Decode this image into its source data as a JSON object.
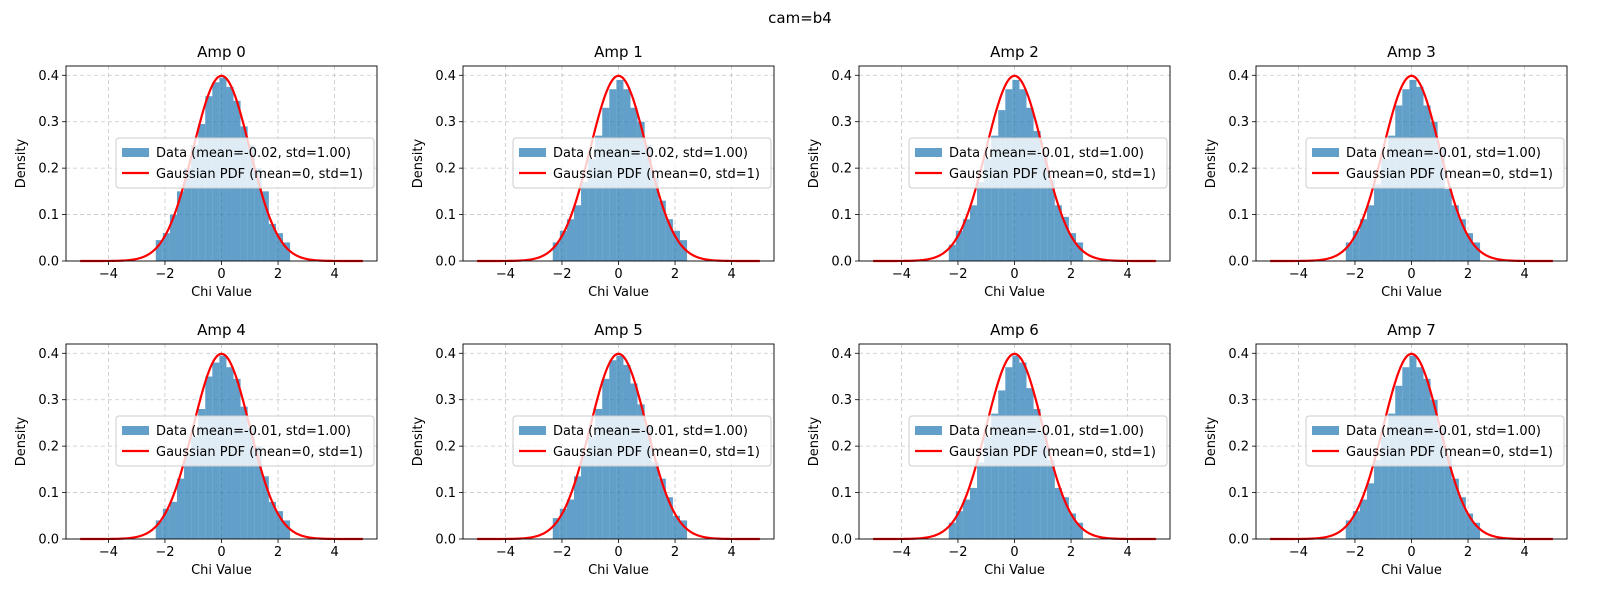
{
  "suptitle": "cam=b4",
  "colors": {
    "hist_fill": "#1f77b4",
    "hist_alpha": 0.7,
    "pdf_line": "#ff0000",
    "grid": "#b0b0b0"
  },
  "chart_data": [
    {
      "type": "bar",
      "title": "Amp 0",
      "xlabel": "Chi Value",
      "ylabel": "Density",
      "xlim": [
        -5.5,
        5.5
      ],
      "ylim": [
        0,
        0.42
      ],
      "xticks": [
        -4,
        -2,
        0,
        2,
        4
      ],
      "yticks": [
        0.0,
        0.1,
        0.2,
        0.3,
        0.4
      ],
      "grid": true,
      "legend_placement": "center",
      "legend": [
        "Data (mean=-0.02, std=1.00)",
        "Gaussian PDF (mean=0, std=1)"
      ],
      "series": [
        {
          "name": "Data (mean=-0.02, std=1.00)",
          "bin_centers": [
            -2.2,
            -1.95,
            -1.7,
            -1.45,
            -1.2,
            -0.95,
            -0.7,
            -0.45,
            -0.2,
            0.05,
            0.3,
            0.55,
            0.8,
            1.05,
            1.3,
            1.55,
            1.8,
            2.05,
            2.3
          ],
          "values": [
            0.045,
            0.06,
            0.1,
            0.15,
            0.2,
            0.25,
            0.295,
            0.355,
            0.385,
            0.395,
            0.375,
            0.345,
            0.29,
            0.25,
            0.2,
            0.15,
            0.08,
            0.06,
            0.04
          ]
        },
        {
          "name": "Gaussian PDF (mean=0, std=1)",
          "mean": 0,
          "std": 1,
          "x_range": [
            -5,
            5
          ]
        }
      ]
    },
    {
      "type": "bar",
      "title": "Amp 1",
      "xlabel": "Chi Value",
      "ylabel": "Density",
      "xlim": [
        -5.5,
        5.5
      ],
      "ylim": [
        0,
        0.42
      ],
      "xticks": [
        -4,
        -2,
        0,
        2,
        4
      ],
      "yticks": [
        0.0,
        0.1,
        0.2,
        0.3,
        0.4
      ],
      "grid": true,
      "legend_placement": "center",
      "legend": [
        "Data (mean=-0.02, std=1.00)",
        "Gaussian PDF (mean=0, std=1)"
      ],
      "series": [
        {
          "name": "Data (mean=-0.02, std=1.00)",
          "bin_centers": [
            -2.2,
            -1.95,
            -1.7,
            -1.45,
            -1.2,
            -0.95,
            -0.7,
            -0.45,
            -0.2,
            0.05,
            0.3,
            0.55,
            0.8,
            1.05,
            1.3,
            1.55,
            1.8,
            2.05,
            2.3
          ],
          "values": [
            0.04,
            0.065,
            0.09,
            0.12,
            0.17,
            0.22,
            0.27,
            0.33,
            0.37,
            0.39,
            0.37,
            0.33,
            0.3,
            0.25,
            0.18,
            0.13,
            0.09,
            0.065,
            0.045
          ]
        },
        {
          "name": "Gaussian PDF (mean=0, std=1)",
          "mean": 0,
          "std": 1,
          "x_range": [
            -5,
            5
          ]
        }
      ]
    },
    {
      "type": "bar",
      "title": "Amp 2",
      "xlabel": "Chi Value",
      "ylabel": "Density",
      "xlim": [
        -5.5,
        5.5
      ],
      "ylim": [
        0,
        0.42
      ],
      "xticks": [
        -4,
        -2,
        0,
        2,
        4
      ],
      "yticks": [
        0.0,
        0.1,
        0.2,
        0.3,
        0.4
      ],
      "grid": true,
      "legend_placement": "center",
      "legend": [
        "Data (mean=-0.01, std=1.00)",
        "Gaussian PDF (mean=0, std=1)"
      ],
      "series": [
        {
          "name": "Data (mean=-0.01, std=1.00)",
          "bin_centers": [
            -2.2,
            -1.95,
            -1.7,
            -1.45,
            -1.2,
            -0.95,
            -0.7,
            -0.45,
            -0.2,
            0.05,
            0.3,
            0.55,
            0.8,
            1.05,
            1.3,
            1.55,
            1.8,
            2.05,
            2.3
          ],
          "values": [
            0.035,
            0.065,
            0.09,
            0.12,
            0.17,
            0.22,
            0.27,
            0.325,
            0.37,
            0.39,
            0.37,
            0.33,
            0.28,
            0.23,
            0.175,
            0.12,
            0.095,
            0.06,
            0.04
          ]
        },
        {
          "name": "Gaussian PDF (mean=0, std=1)",
          "mean": 0,
          "std": 1,
          "x_range": [
            -5,
            5
          ]
        }
      ]
    },
    {
      "type": "bar",
      "title": "Amp 3",
      "xlabel": "Chi Value",
      "ylabel": "Density",
      "xlim": [
        -5.5,
        5.5
      ],
      "ylim": [
        0,
        0.42
      ],
      "xticks": [
        -4,
        -2,
        0,
        2,
        4
      ],
      "yticks": [
        0.0,
        0.1,
        0.2,
        0.3,
        0.4
      ],
      "grid": true,
      "legend_placement": "center",
      "legend": [
        "Data (mean=-0.01, std=1.00)",
        "Gaussian PDF (mean=0, std=1)"
      ],
      "series": [
        {
          "name": "Data (mean=-0.01, std=1.00)",
          "bin_centers": [
            -2.2,
            -1.95,
            -1.7,
            -1.45,
            -1.2,
            -0.95,
            -0.7,
            -0.45,
            -0.2,
            0.05,
            0.3,
            0.55,
            0.8,
            1.05,
            1.3,
            1.55,
            1.8,
            2.05,
            2.3
          ],
          "values": [
            0.04,
            0.065,
            0.09,
            0.12,
            0.165,
            0.22,
            0.27,
            0.335,
            0.37,
            0.39,
            0.375,
            0.335,
            0.3,
            0.245,
            0.155,
            0.12,
            0.09,
            0.06,
            0.04
          ]
        },
        {
          "name": "Gaussian PDF (mean=0, std=1)",
          "mean": 0,
          "std": 1,
          "x_range": [
            -5,
            5
          ]
        }
      ]
    },
    {
      "type": "bar",
      "title": "Amp 4",
      "xlabel": "Chi Value",
      "ylabel": "Density",
      "xlim": [
        -5.5,
        5.5
      ],
      "ylim": [
        0,
        0.42
      ],
      "xticks": [
        -4,
        -2,
        0,
        2,
        4
      ],
      "yticks": [
        0.0,
        0.1,
        0.2,
        0.3,
        0.4
      ],
      "grid": true,
      "legend_placement": "center",
      "legend": [
        "Data (mean=-0.01, std=1.00)",
        "Gaussian PDF (mean=0, std=1)"
      ],
      "series": [
        {
          "name": "Data (mean=-0.01, std=1.00)",
          "bin_centers": [
            -2.2,
            -1.95,
            -1.7,
            -1.45,
            -1.2,
            -0.95,
            -0.7,
            -0.45,
            -0.2,
            0.05,
            0.3,
            0.55,
            0.8,
            1.05,
            1.3,
            1.55,
            1.8,
            2.05,
            2.3
          ],
          "values": [
            0.04,
            0.065,
            0.08,
            0.13,
            0.18,
            0.22,
            0.28,
            0.35,
            0.38,
            0.395,
            0.37,
            0.345,
            0.285,
            0.24,
            0.2,
            0.135,
            0.08,
            0.06,
            0.04
          ]
        },
        {
          "name": "Gaussian PDF (mean=0, std=1)",
          "mean": 0,
          "std": 1,
          "x_range": [
            -5,
            5
          ]
        }
      ]
    },
    {
      "type": "bar",
      "title": "Amp 5",
      "xlabel": "Chi Value",
      "ylabel": "Density",
      "xlim": [
        -5.5,
        5.5
      ],
      "ylim": [
        0,
        0.42
      ],
      "xticks": [
        -4,
        -2,
        0,
        2,
        4
      ],
      "yticks": [
        0.0,
        0.1,
        0.2,
        0.3,
        0.4
      ],
      "grid": true,
      "legend_placement": "center",
      "legend": [
        "Data (mean=-0.01, std=1.00)",
        "Gaussian PDF (mean=0, std=1)"
      ],
      "series": [
        {
          "name": "Data (mean=-0.01, std=1.00)",
          "bin_centers": [
            -2.2,
            -1.95,
            -1.7,
            -1.45,
            -1.2,
            -0.95,
            -0.7,
            -0.45,
            -0.2,
            0.05,
            0.3,
            0.55,
            0.8,
            1.05,
            1.3,
            1.55,
            1.8,
            2.05,
            2.3
          ],
          "values": [
            0.045,
            0.065,
            0.085,
            0.135,
            0.18,
            0.22,
            0.28,
            0.345,
            0.385,
            0.395,
            0.375,
            0.335,
            0.29,
            0.245,
            0.165,
            0.13,
            0.09,
            0.05,
            0.04
          ]
        },
        {
          "name": "Gaussian PDF (mean=0, std=1)",
          "mean": 0,
          "std": 1,
          "x_range": [
            -5,
            5
          ]
        }
      ]
    },
    {
      "type": "bar",
      "title": "Amp 6",
      "xlabel": "Chi Value",
      "ylabel": "Density",
      "xlim": [
        -5.5,
        5.5
      ],
      "ylim": [
        0,
        0.42
      ],
      "xticks": [
        -4,
        -2,
        0,
        2,
        4
      ],
      "yticks": [
        0.0,
        0.1,
        0.2,
        0.3,
        0.4
      ],
      "grid": true,
      "legend_placement": "center",
      "legend": [
        "Data (mean=-0.01, std=1.00)",
        "Gaussian PDF (mean=0, std=1)"
      ],
      "series": [
        {
          "name": "Data (mean=-0.01, std=1.00)",
          "bin_centers": [
            -2.2,
            -1.95,
            -1.7,
            -1.45,
            -1.2,
            -0.95,
            -0.7,
            -0.45,
            -0.2,
            0.05,
            0.3,
            0.55,
            0.8,
            1.05,
            1.3,
            1.55,
            1.8,
            2.05,
            2.3
          ],
          "values": [
            0.035,
            0.06,
            0.085,
            0.11,
            0.165,
            0.22,
            0.27,
            0.32,
            0.37,
            0.395,
            0.38,
            0.325,
            0.28,
            0.23,
            0.17,
            0.11,
            0.09,
            0.055,
            0.035
          ]
        },
        {
          "name": "Gaussian PDF (mean=0, std=1)",
          "mean": 0,
          "std": 1,
          "x_range": [
            -5,
            5
          ]
        }
      ]
    },
    {
      "type": "bar",
      "title": "Amp 7",
      "xlabel": "Chi Value",
      "ylabel": "Density",
      "xlim": [
        -5.5,
        5.5
      ],
      "ylim": [
        0,
        0.42
      ],
      "xticks": [
        -4,
        -2,
        0,
        2,
        4
      ],
      "yticks": [
        0.0,
        0.1,
        0.2,
        0.3,
        0.4
      ],
      "grid": true,
      "legend_placement": "center",
      "legend": [
        "Data (mean=-0.01, std=1.00)",
        "Gaussian PDF (mean=0, std=1)"
      ],
      "series": [
        {
          "name": "Data (mean=-0.01, std=1.00)",
          "bin_centers": [
            -2.2,
            -1.95,
            -1.7,
            -1.45,
            -1.2,
            -0.95,
            -0.7,
            -0.45,
            -0.2,
            0.05,
            0.3,
            0.55,
            0.8,
            1.05,
            1.3,
            1.55,
            1.8,
            2.05,
            2.3
          ],
          "values": [
            0.04,
            0.06,
            0.085,
            0.12,
            0.17,
            0.22,
            0.27,
            0.33,
            0.37,
            0.395,
            0.37,
            0.345,
            0.3,
            0.24,
            0.18,
            0.13,
            0.09,
            0.055,
            0.035
          ]
        },
        {
          "name": "Gaussian PDF (mean=0, std=1)",
          "mean": 0,
          "std": 1,
          "x_range": [
            -5,
            5
          ]
        }
      ]
    }
  ]
}
